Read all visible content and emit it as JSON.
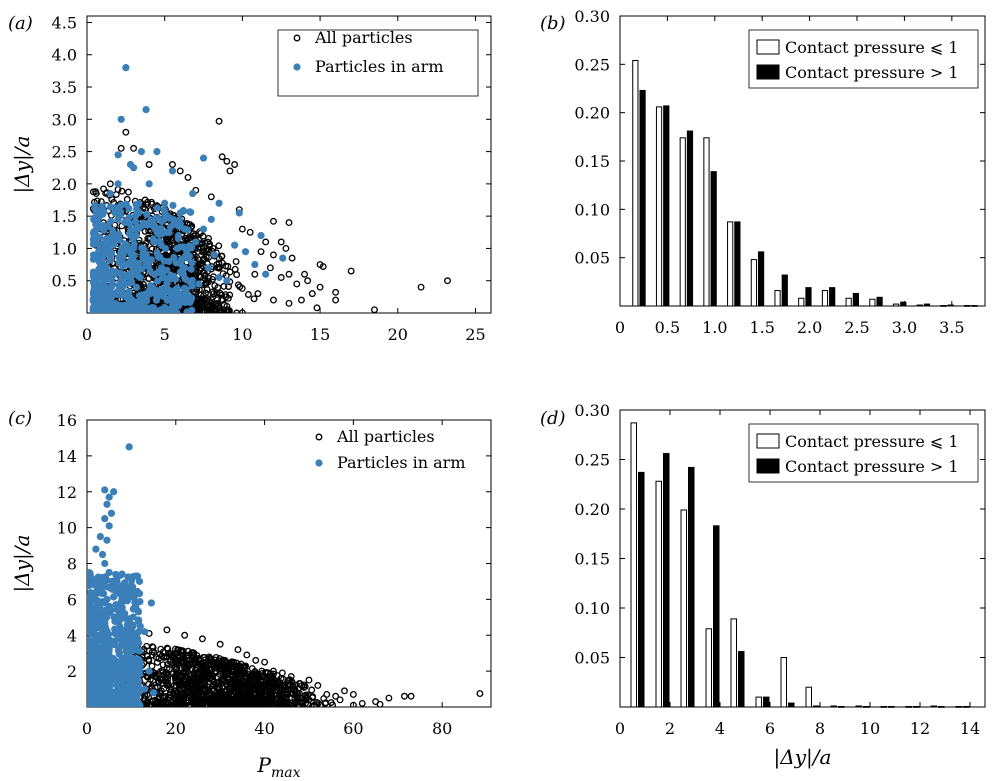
{
  "chart_data": [
    {
      "panel": "(a)",
      "type": "scatter",
      "xlim": [
        0,
        26
      ],
      "ylim": [
        0,
        4.6
      ],
      "xticks": [
        "0",
        "5",
        "10",
        "15",
        "20",
        "25"
      ],
      "yticks": [
        "0.5",
        "1.0",
        "1.5",
        "2.0",
        "2.5",
        "3.0",
        "3.5",
        "4.0",
        "4.5"
      ],
      "xlabel": "",
      "ylabel": "|Δy|/a",
      "legend": "top-right",
      "series": [
        {
          "name": "All particles",
          "marker": "open-circle",
          "color": "#000000",
          "points": [
            [
              8.5,
              2.97
            ],
            [
              9.0,
              2.35
            ],
            [
              8.7,
              2.42
            ],
            [
              9.5,
              2.3
            ],
            [
              9.2,
              2.2
            ],
            [
              12.0,
              1.42
            ],
            [
              13.0,
              1.4
            ],
            [
              12.5,
              1.1
            ],
            [
              12.8,
              1.0
            ],
            [
              13.2,
              0.85
            ],
            [
              13.0,
              0.6
            ],
            [
              14.0,
              0.6
            ],
            [
              15.0,
              0.75
            ],
            [
              15.2,
              0.72
            ],
            [
              15.0,
              0.4
            ],
            [
              14.5,
              0.3
            ],
            [
              16.0,
              0.32
            ],
            [
              16.0,
              0.2
            ],
            [
              14.8,
              0.08
            ],
            [
              17.0,
              0.65
            ],
            [
              18.5,
              0.05
            ],
            [
              21.5,
              0.4
            ],
            [
              23.2,
              0.5
            ],
            [
              3.0,
              2.55
            ],
            [
              2.2,
              2.55
            ],
            [
              6.0,
              2.2
            ],
            [
              6.5,
              2.1
            ],
            [
              7.0,
              1.9
            ],
            [
              5.5,
              2.3
            ],
            [
              1.5,
              2.0
            ],
            [
              10.0,
              1.3
            ],
            [
              10.5,
              1.25
            ],
            [
              11.2,
              0.95
            ],
            [
              11.5,
              1.1
            ],
            [
              12.0,
              0.9
            ],
            [
              11.8,
              0.7
            ],
            [
              12.5,
              0.55
            ],
            [
              13.5,
              0.45
            ],
            [
              11.0,
              0.3
            ],
            [
              12.0,
              0.2
            ],
            [
              13.0,
              0.15
            ],
            [
              10.8,
              0.6
            ],
            [
              9.8,
              1.6
            ],
            [
              8.0,
              1.8
            ],
            [
              4.0,
              2.3
            ],
            [
              1.0,
              1.55
            ],
            [
              2.5,
              2.8
            ],
            [
              13.8,
              0.2
            ],
            [
              14.2,
              0.5
            ]
          ],
          "note": "dense cloud P 0.5–11, |Δy|/a 0–2"
        },
        {
          "name": "Particles in arm",
          "marker": "filled-circle",
          "color": "#3a7fb8",
          "points": [
            [
              2.5,
              3.8
            ],
            [
              3.8,
              3.15
            ],
            [
              2.2,
              3.0
            ],
            [
              2.0,
              2.45
            ],
            [
              2.8,
              2.3
            ],
            [
              4.5,
              2.5
            ],
            [
              3.5,
              2.5
            ],
            [
              5.5,
              2.2
            ],
            [
              7.5,
              2.4
            ],
            [
              3.0,
              2.25
            ],
            [
              4.0,
              2.0
            ],
            [
              8.5,
              1.7
            ],
            [
              6.8,
              1.85
            ],
            [
              9.8,
              1.55
            ],
            [
              8.0,
              1.45
            ],
            [
              7.5,
              1.3
            ],
            [
              11.2,
              1.2
            ],
            [
              10.2,
              0.95
            ],
            [
              12.6,
              0.85
            ],
            [
              10.8,
              0.75
            ],
            [
              11.5,
              0.6
            ],
            [
              9.0,
              0.5
            ],
            [
              6.0,
              1.55
            ],
            [
              5.0,
              1.7
            ],
            [
              7.0,
              1.1
            ],
            [
              6.5,
              0.85
            ],
            [
              8.2,
              0.9
            ],
            [
              9.5,
              1.05
            ],
            [
              8.5,
              0.55
            ],
            [
              7.8,
              0.7
            ],
            [
              1.0,
              1.6
            ],
            [
              1.5,
              1.85
            ],
            [
              2.0,
              2.0
            ],
            [
              3.2,
              1.6
            ],
            [
              4.2,
              1.4
            ],
            [
              5.8,
              1.0
            ],
            [
              6.2,
              0.6
            ],
            [
              7.2,
              0.45
            ],
            [
              4.8,
              0.7
            ]
          ],
          "note": "dense cloud P 0.5–6, |Δy|/a 0–1.7"
        }
      ]
    },
    {
      "panel": "(b)",
      "type": "bar",
      "xlim": [
        0,
        3.85
      ],
      "ylim": [
        0,
        0.3
      ],
      "xticks": [
        "0",
        "0.5",
        "1.0",
        "1.5",
        "2.0",
        "2.5",
        "3.0",
        "3.5"
      ],
      "yticks": [
        "0.05",
        "0.10",
        "0.15",
        "0.20",
        "0.25",
        "0.30"
      ],
      "xlabel": "",
      "ylabel": "",
      "legend": "top-right",
      "categories": [
        0.2,
        0.45,
        0.7,
        0.95,
        1.2,
        1.45,
        1.7,
        1.95,
        2.2,
        2.45,
        2.7,
        2.95,
        3.2,
        3.45,
        3.7
      ],
      "series": [
        {
          "name": "Contact pressure ⩽ 1",
          "fill": "#ffffff",
          "values": [
            0.254,
            0.206,
            0.174,
            0.174,
            0.087,
            0.048,
            0.016,
            0.008,
            0.016,
            0.008,
            0.007,
            0.002,
            0.001,
            0.0005,
            0.0005
          ]
        },
        {
          "name": "Contact pressure > 1",
          "fill": "#000000",
          "values": [
            0.223,
            0.207,
            0.181,
            0.139,
            0.087,
            0.056,
            0.032,
            0.019,
            0.019,
            0.013,
            0.009,
            0.004,
            0.002,
            0.001,
            0.0005
          ]
        }
      ]
    },
    {
      "panel": "(c)",
      "type": "scatter",
      "xlim": [
        0,
        91
      ],
      "ylim": [
        0,
        16
      ],
      "xticks": [
        "0",
        "20",
        "40",
        "60",
        "80"
      ],
      "yticks": [
        "2",
        "4",
        "6",
        "8",
        "10",
        "12",
        "14",
        "16"
      ],
      "xlabel": "P_max",
      "ylabel": "|Δy|/a",
      "legend": "top-right",
      "series": [
        {
          "name": "All particles",
          "marker": "open-circle",
          "color": "#000000",
          "points": [
            [
              88.5,
              0.75
            ],
            [
              73,
              0.6
            ],
            [
              71.5,
              0.6
            ],
            [
              68,
              0.5
            ],
            [
              65,
              0.3
            ],
            [
              60,
              0.7
            ],
            [
              58,
              0.9
            ],
            [
              56,
              0.6
            ],
            [
              54,
              0.7
            ],
            [
              57,
              0.4
            ],
            [
              52,
              1.2
            ],
            [
              50,
              1.5
            ],
            [
              48,
              1.3
            ],
            [
              46,
              1.7
            ],
            [
              44,
              1.9
            ],
            [
              42,
              2.0
            ],
            [
              40,
              2.5
            ],
            [
              38,
              2.6
            ],
            [
              36,
              2.9
            ],
            [
              34,
              3.2
            ],
            [
              30,
              3.5
            ],
            [
              26,
              3.8
            ],
            [
              22,
              4.0
            ],
            [
              18,
              4.3
            ],
            [
              14,
              4.1
            ],
            [
              45,
              0.8
            ],
            [
              50,
              0.4
            ],
            [
              47,
              0.2
            ],
            [
              62,
              0.2
            ],
            [
              66,
              0.15
            ],
            [
              55,
              0.25
            ],
            [
              60,
              0.1
            ]
          ],
          "note": "dense cloud P 8–58, |Δy|/a 0–3.5"
        },
        {
          "name": "Particles in arm",
          "marker": "filled-circle",
          "color": "#3a7fb8",
          "points": [
            [
              9.5,
              14.5
            ],
            [
              4.0,
              12.1
            ],
            [
              6.0,
              12.0
            ],
            [
              5.0,
              11.7
            ],
            [
              4.5,
              11.3
            ],
            [
              5.5,
              10.8
            ],
            [
              4.0,
              10.5
            ],
            [
              5.0,
              10.1
            ],
            [
              3.0,
              9.5
            ],
            [
              4.5,
              9.3
            ],
            [
              2.0,
              8.8
            ],
            [
              3.5,
              8.5
            ],
            [
              4.0,
              8.0
            ],
            [
              5.0,
              7.5
            ],
            [
              3.0,
              7.2
            ],
            [
              6.0,
              7.0
            ],
            [
              7.0,
              6.5
            ],
            [
              8.0,
              6.2
            ],
            [
              4.5,
              6.0
            ],
            [
              6.5,
              5.7
            ],
            [
              14.5,
              5.8
            ],
            [
              8.5,
              5.2
            ],
            [
              10,
              4.6
            ],
            [
              12,
              4.5
            ],
            [
              13,
              4.2
            ],
            [
              11,
              3.8
            ],
            [
              9,
              3.5
            ],
            [
              12,
              2.5
            ],
            [
              14,
              2.0
            ],
            [
              11,
              1.4
            ],
            [
              13,
              1.0
            ],
            [
              15,
              0.8
            ],
            [
              11,
              0.5
            ]
          ],
          "note": "dense cloud P 0.5–12, |Δy|/a 0–8"
        }
      ]
    },
    {
      "panel": "(d)",
      "type": "bar",
      "xlim": [
        0,
        14.6
      ],
      "ylim": [
        0,
        0.3
      ],
      "xticks": [
        "0",
        "2",
        "4",
        "6",
        "8",
        "10",
        "12",
        "14"
      ],
      "yticks": [
        "0.05",
        "0.10",
        "0.15",
        "0.20",
        "0.25",
        "0.30"
      ],
      "xlabel": "|Δy|/a",
      "ylabel": "",
      "legend": "top-right",
      "categories": [
        0.7,
        1.7,
        2.7,
        3.7,
        4.7,
        5.7,
        6.7,
        7.7,
        8.7,
        9.7,
        10.7,
        11.7,
        12.7,
        13.7
      ],
      "series": [
        {
          "name": "Contact pressure ⩽ 1",
          "fill": "#ffffff",
          "values": [
            0.287,
            0.228,
            0.199,
            0.079,
            0.089,
            0.01,
            0.05,
            0.02,
            0.001,
            0.001,
            0.0005,
            0.0005,
            0.001,
            0.0005
          ]
        },
        {
          "name": "Contact pressure > 1",
          "fill": "#000000",
          "values": [
            0.237,
            0.256,
            0.242,
            0.183,
            0.056,
            0.01,
            0.004,
            0.001,
            0.0005,
            0.0005,
            0.0005,
            0.0005,
            0.0005,
            0.0005
          ]
        }
      ]
    }
  ]
}
